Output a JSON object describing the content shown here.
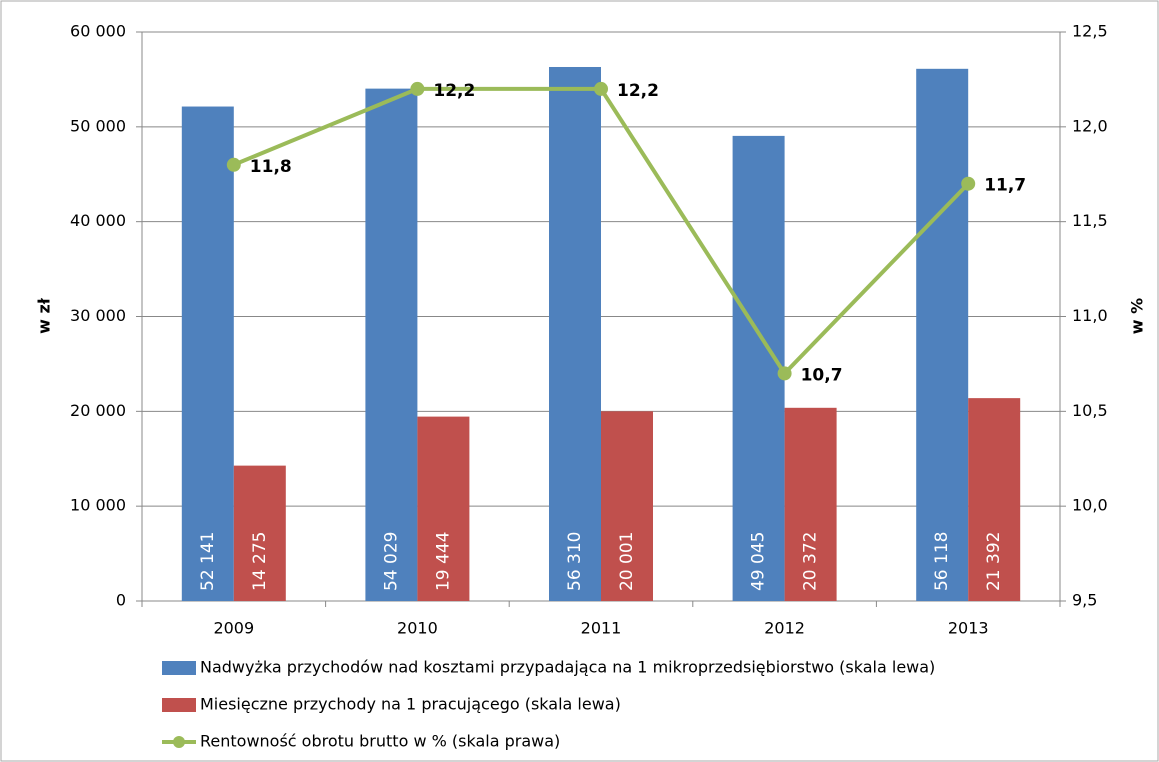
{
  "chart_data": {
    "type": "bar",
    "categories": [
      "2009",
      "2010",
      "2011",
      "2012",
      "2013"
    ],
    "series": [
      {
        "name": "Nadwyżka przychodów nad kosztami przypadająca na 1 mikroprzedsiębiorstwo (skala lewa)",
        "color": "#4f81bd",
        "type": "bar",
        "values": [
          52141,
          54029,
          56310,
          49045,
          56118
        ],
        "value_labels": [
          "52 141",
          "54 029",
          "56 310",
          "49 045",
          "56 118"
        ]
      },
      {
        "name": "Miesięczne przychody na 1 pracującego (skala lewa)",
        "color": "#c0504d",
        "type": "bar",
        "values": [
          14275,
          19444,
          20001,
          20372,
          21392
        ],
        "value_labels": [
          "14 275",
          "19 444",
          "20 001",
          "20 372",
          "21 392"
        ]
      },
      {
        "name": "Rentowność obrotu brutto w % (skala prawa)",
        "color": "#9bbb59",
        "type": "line",
        "axis": "y2",
        "values": [
          11.8,
          12.2,
          12.2,
          10.7,
          11.7
        ],
        "value_labels": [
          "11,8",
          "12,2",
          "12,2",
          "10,7",
          "11,7"
        ]
      }
    ],
    "ylabel": "w zł",
    "y2label": "w %",
    "ylim": [
      0,
      60000
    ],
    "yticks": [
      0,
      {
        "value": 10000,
        "label": "10 000"
      },
      {
        "value": 20000,
        "label": "20 000"
      },
      {
        "value": 30000,
        "label": "30 000"
      },
      {
        "value": 40000,
        "label": "40 000"
      },
      {
        "value": 50000,
        "label": "50 000"
      },
      {
        "value": 60000,
        "label": "60 000"
      }
    ],
    "y2lim": [
      9.5,
      12.5
    ],
    "y2ticks": [
      {
        "value": 9.5,
        "label": "9,5"
      },
      {
        "value": 10,
        "label": "10,0"
      },
      {
        "value": 10.5,
        "label": "10,5"
      },
      {
        "value": 11,
        "label": "11,0"
      },
      {
        "value": 11.5,
        "label": "11,5"
      },
      {
        "value": 12,
        "label": "12,0"
      },
      {
        "value": 12.5,
        "label": "12,5"
      }
    ],
    "grid": true,
    "legend": "bottom"
  }
}
